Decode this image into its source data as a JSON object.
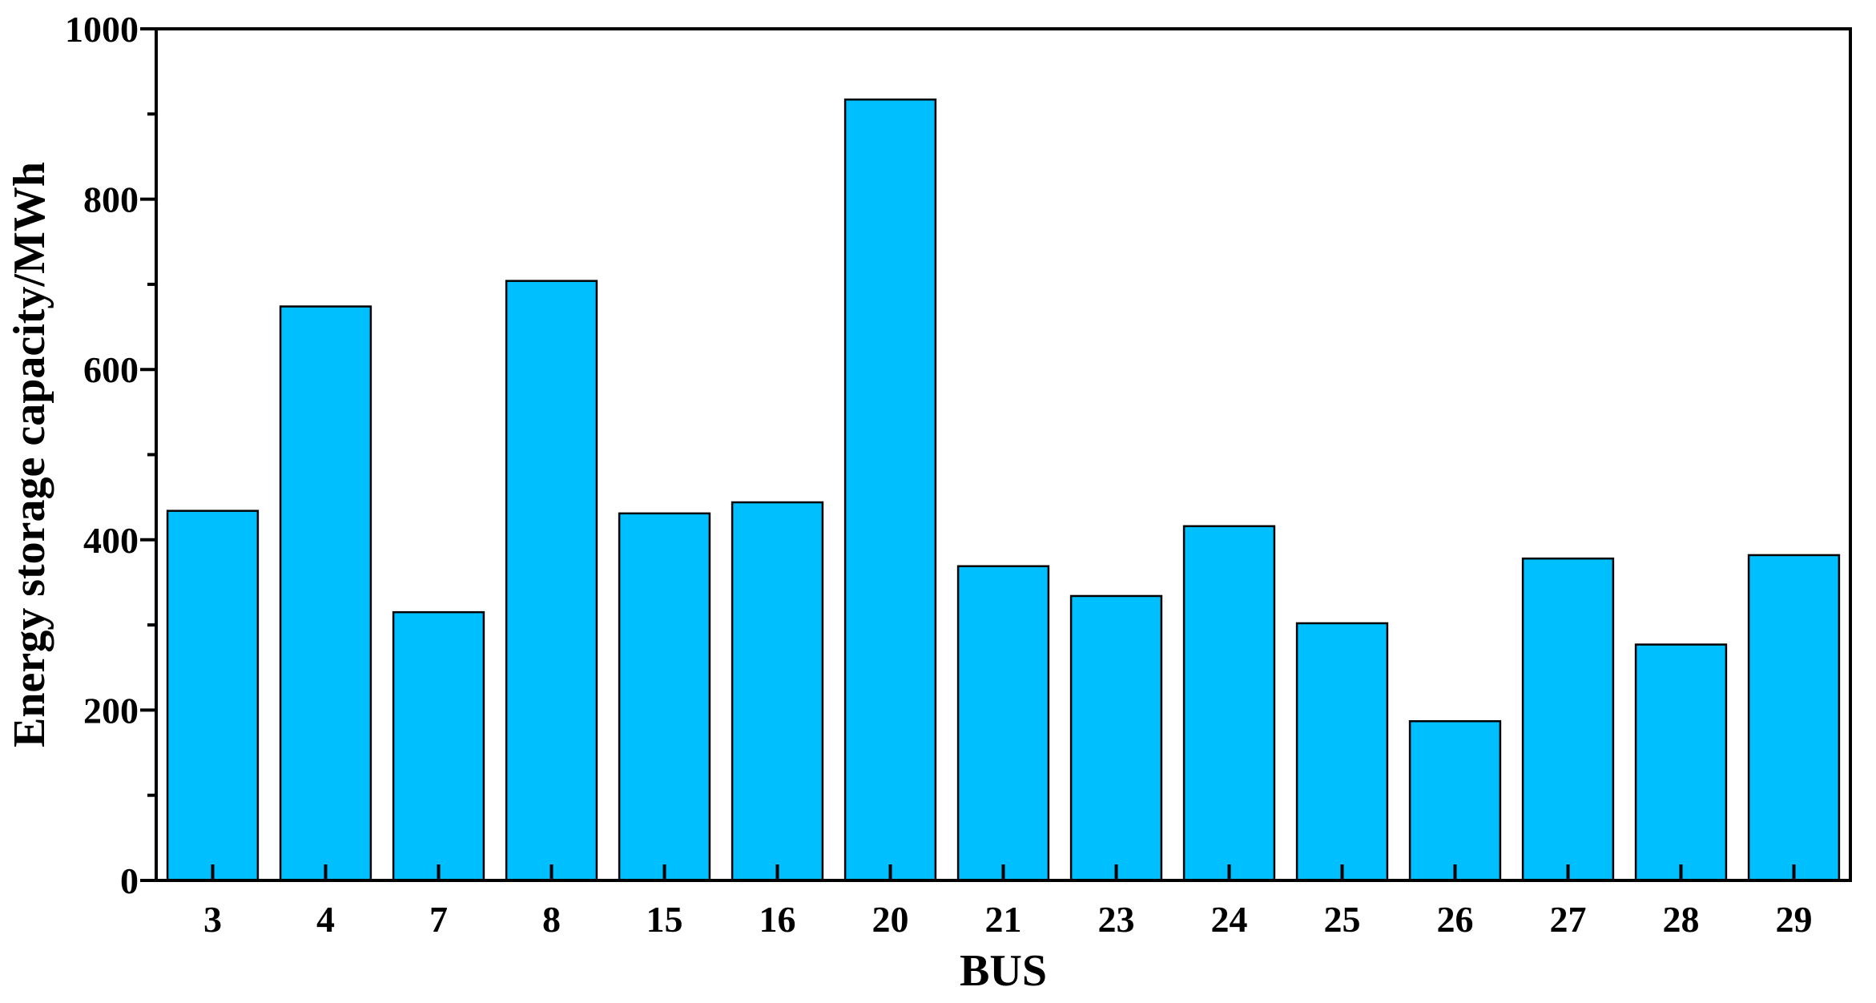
{
  "colors": {
    "bar_fill": "#00BFFF",
    "bar_stroke": "#000000",
    "axis": "#000000",
    "background": "#FFFFFF"
  },
  "chart_data": {
    "type": "bar",
    "title": "",
    "xlabel": "BUS",
    "ylabel": "Energy storage capacity/MWh",
    "categories": [
      "3",
      "4",
      "7",
      "8",
      "15",
      "16",
      "20",
      "21",
      "23",
      "24",
      "25",
      "26",
      "27",
      "28",
      "29"
    ],
    "values": [
      434,
      674,
      315,
      704,
      431,
      444,
      917,
      369,
      334,
      416,
      302,
      187,
      378,
      277,
      382
    ],
    "ylim": [
      0,
      1000
    ],
    "yticks": [
      0,
      200,
      400,
      600,
      800,
      1000
    ],
    "yminor_step": 100,
    "grid": false,
    "legend": "none"
  }
}
